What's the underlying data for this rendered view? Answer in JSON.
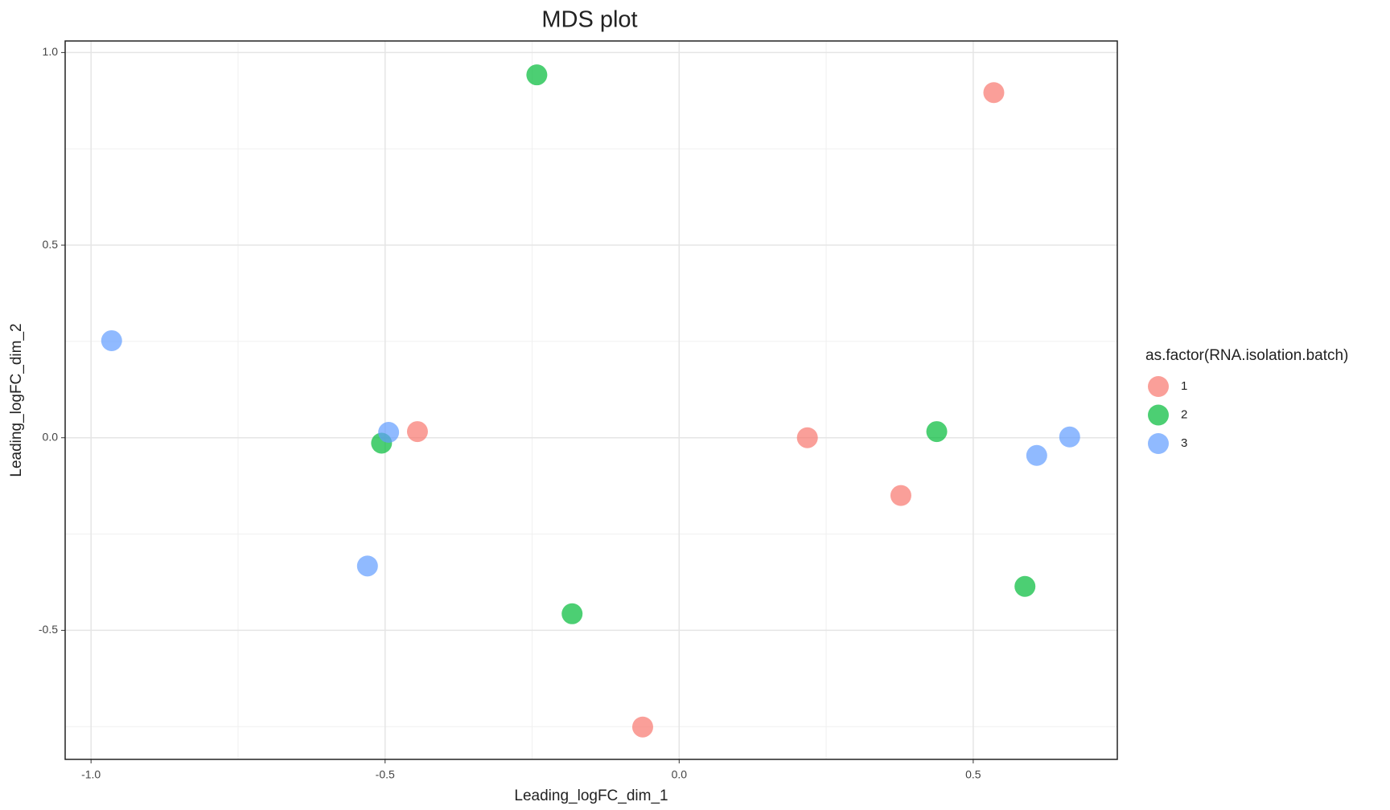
{
  "chart_data": {
    "type": "scatter",
    "title": "MDS plot",
    "x_label": "Leading_logFC_dim_1",
    "y_label": "Leading_logFC_dim_2",
    "legend_title": "as.factor(RNA.isolation.batch)",
    "legend": "right",
    "grid": true,
    "xlim": [
      -1.044,
      0.745
    ],
    "ylim": [
      -0.835,
      1.03
    ],
    "xticks": [
      {
        "value": -1,
        "label": "-1.0"
      },
      -0.5,
      {
        "value": 0,
        "label": "0.0"
      },
      0.5
    ],
    "yticks": [
      -0.5,
      {
        "value": 0,
        "label": "0.0"
      },
      0.5,
      {
        "value": 1,
        "label": "1.0"
      }
    ],
    "series": [
      {
        "name": "1",
        "color": "#F8766D",
        "x": [
          0.535,
          -0.445,
          0.218,
          0.377,
          -0.062
        ],
        "values": [
          0.896,
          0.016,
          0.0,
          -0.15,
          -0.751
        ]
      },
      {
        "name": "2",
        "color": "#00BA38",
        "x": [
          -0.242,
          -0.506,
          0.438,
          -0.182,
          0.588
        ],
        "values": [
          0.942,
          -0.014,
          0.016,
          -0.457,
          -0.386
        ]
      },
      {
        "name": "3",
        "color": "#619CFF",
        "x": [
          -0.965,
          -0.494,
          -0.53,
          0.608,
          0.664
        ],
        "values": [
          0.252,
          0.014,
          -0.333,
          -0.046,
          0.002
        ]
      }
    ]
  }
}
